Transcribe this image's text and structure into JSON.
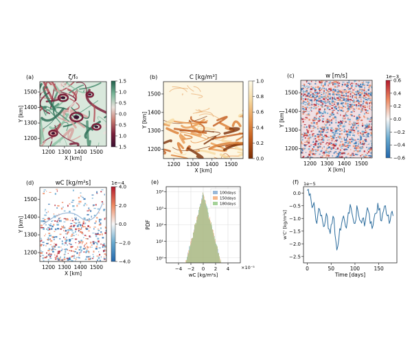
{
  "chart_data": [
    {
      "type": "heatmap",
      "panel_label": "(a)",
      "title": "ζ/f₀",
      "xlabel": "X [km]",
      "ylabel": "Y [km]",
      "xticks": [
        "1200",
        "1300",
        "1400",
        "1500"
      ],
      "yticks": [
        "1500",
        "1400",
        "1300",
        "1200"
      ],
      "colorbar_ticks": [
        "1.5",
        "1.0",
        "0.5",
        "0.0",
        "0.5",
        "1.0",
        "1.5"
      ],
      "colormap": [
        "#1f5e4a",
        "#7ab89a",
        "#e9e2dc",
        "#c87a70",
        "#7a1f3a",
        "#3a1030"
      ]
    },
    {
      "type": "heatmap",
      "panel_label": "(b)",
      "title": "C [kg/m³]",
      "xlabel": "X [km]",
      "ylabel": "Y [km]",
      "xticks": [
        "1200",
        "1300",
        "1400",
        "1500"
      ],
      "yticks": [
        "1500",
        "1400",
        "1300",
        "1200"
      ],
      "colorbar_ticks": [
        "1.0",
        "0.8",
        "0.6",
        "0.4",
        "0.2",
        "0.0"
      ],
      "colormap": [
        "#fffbe8",
        "#f6d9a0",
        "#e89850",
        "#c25a1a",
        "#7a2e06"
      ]
    },
    {
      "type": "heatmap",
      "panel_label": "(c)",
      "title": "w [m/s]",
      "xlabel": "X [km]",
      "ylabel": "Y [km]",
      "xticks": [
        "1200",
        "1300",
        "1400",
        "1500"
      ],
      "yticks": [
        "1500",
        "1400",
        "1300",
        "1200"
      ],
      "colorbar_ticks": [
        "0.6",
        "0.4",
        "0.2",
        "0.0",
        "−0.2",
        "−0.4",
        "−0.6"
      ],
      "colorbar_exponent": "1e−3",
      "colormap": [
        "#b2182b",
        "#ef8a62",
        "#f7f7f7",
        "#67a9cf",
        "#2166ac"
      ]
    },
    {
      "type": "heatmap",
      "panel_label": "(d)",
      "title": "wC [kg/m²s]",
      "xlabel": "X [km]",
      "ylabel": "Y [km]",
      "xticks": [
        "1200",
        "1300",
        "1400",
        "1500"
      ],
      "yticks": [
        "1500",
        "1400",
        "1300",
        "1200"
      ],
      "colorbar_ticks": [
        "4.0",
        "2.0",
        "0.0",
        "−2.0",
        "−4.0"
      ],
      "colorbar_exponent": "1e−4",
      "colormap": [
        "#b2182b",
        "#ef8a62",
        "#f7f7f7",
        "#67a9cf",
        "#2166ac"
      ]
    },
    {
      "type": "bar",
      "panel_label": "(e)",
      "xlabel": "wC [kg/m²s]",
      "ylabel": "PDF",
      "x_exponent": "×10⁻⁵",
      "log_y": true,
      "xlim": [
        -6,
        6
      ],
      "ylim_exp": [
        -0.3,
        4.3
      ],
      "xticks": [
        -4,
        -2,
        0,
        2,
        4
      ],
      "xticklabels": [
        "−4",
        "−2",
        "0",
        "2",
        "4"
      ],
      "yticks": [
        0,
        1,
        2,
        3,
        4
      ],
      "yticklabels": [
        "10⁰",
        "10¹",
        "10²",
        "10³",
        "10⁴"
      ],
      "grid": true,
      "legend_position": "top-right",
      "legend": [
        "100days",
        "150days",
        "180days"
      ],
      "series_colors": [
        "#7fa8d0",
        "#f4a56b",
        "#8fc77e"
      ],
      "pdf_model": {
        "peak_log10": 3.9,
        "laplace_scale": 1.05,
        "noise": 0.35
      }
    },
    {
      "type": "line",
      "panel_label": "(f)",
      "xlabel": "Time [days]",
      "ylabel": "w'C' [kg/m²s]",
      "y_exponent": "1e−5",
      "xlim": [
        -8,
        188
      ],
      "ylim": [
        -2.75,
        0.25
      ],
      "xticks": [
        0,
        50,
        100,
        150
      ],
      "xticklabels": [
        "0",
        "50",
        "100",
        "150"
      ],
      "yticks": [
        0.0,
        -0.5,
        -1.0,
        -1.5,
        -2.0,
        -2.5
      ],
      "yticklabels": [
        "0.0",
        "−0.5",
        "−1.0",
        "−1.5",
        "−2.0",
        "−2.5"
      ],
      "line_color": "#2a6b9c",
      "x": [
        0,
        4,
        8,
        12,
        16,
        20,
        24,
        28,
        32,
        36,
        40,
        44,
        48,
        52,
        56,
        60,
        64,
        68,
        72,
        76,
        80,
        84,
        88,
        92,
        96,
        100,
        104,
        108,
        112,
        116,
        120,
        124,
        128,
        132,
        136,
        140,
        144,
        148,
        152,
        156,
        160,
        164,
        168,
        172,
        176,
        180
      ],
      "values": [
        0.1,
        -0.1,
        -0.3,
        -0.5,
        -0.7,
        -1.2,
        -0.6,
        -0.9,
        -1.1,
        -1.3,
        -0.8,
        -1.4,
        -1.6,
        -1.2,
        -1.0,
        -1.9,
        -2.1,
        -1.4,
        -1.2,
        -0.9,
        -1.3,
        -1.1,
        -0.8,
        -0.6,
        -1.0,
        -1.2,
        -0.5,
        -0.9,
        -1.1,
        -1.0,
        -1.3,
        -0.8,
        -0.7,
        -1.2,
        -1.4,
        -1.0,
        -0.8,
        -0.4,
        -0.6,
        -1.1,
        -0.7,
        -0.5,
        -0.9,
        -1.2,
        -0.8,
        -0.9
      ]
    }
  ]
}
